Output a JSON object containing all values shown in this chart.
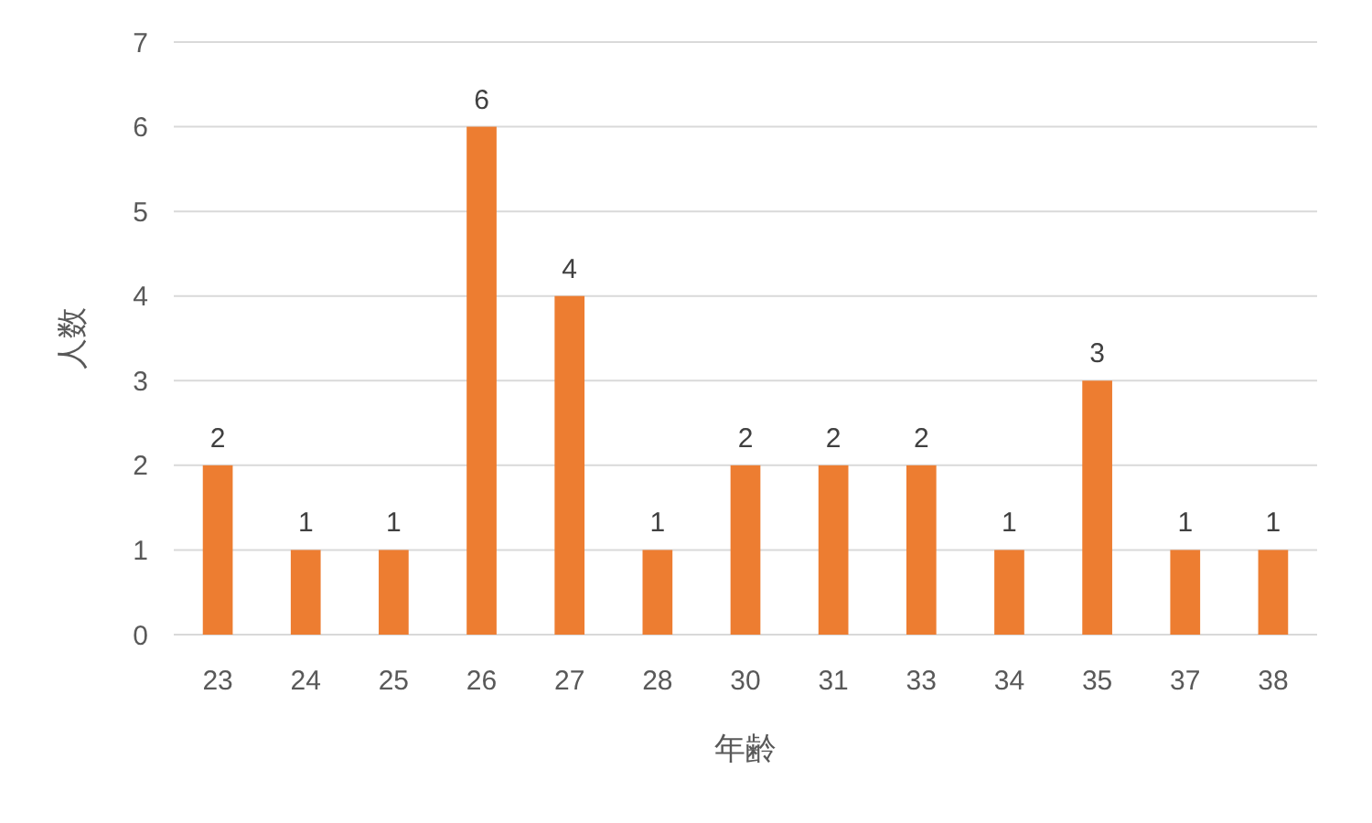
{
  "chart_data": {
    "type": "bar",
    "xlabel": "年齢",
    "ylabel": "人数",
    "categories": [
      "23",
      "24",
      "25",
      "26",
      "27",
      "28",
      "30",
      "31",
      "33",
      "34",
      "35",
      "37",
      "38"
    ],
    "values": [
      2,
      1,
      1,
      6,
      4,
      1,
      2,
      2,
      2,
      1,
      3,
      1,
      1
    ],
    "color": "#ed7d31",
    "ylim": [
      0,
      7
    ],
    "yticks": [
      0,
      1,
      2,
      3,
      4,
      5,
      6,
      7
    ],
    "grid": "y",
    "data_labels": true
  }
}
